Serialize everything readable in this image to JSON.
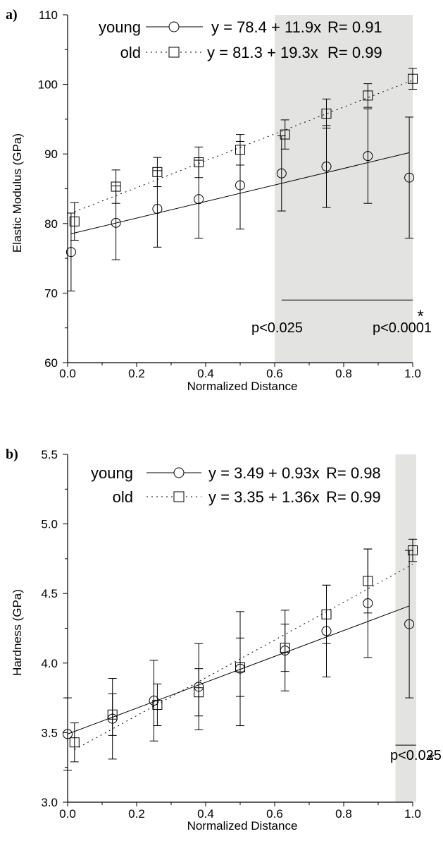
{
  "chart_data": [
    {
      "type": "scatter",
      "panel_label": "a)",
      "xlabel": "Normalized Distance",
      "ylabel": "Elastic Modulus (GPa)",
      "xlim": [
        0.0,
        1.0
      ],
      "ylim": [
        60,
        110
      ],
      "x_ticks": [
        "0.0",
        "0.2",
        "0.4",
        "0.6",
        "0.8",
        "1.0"
      ],
      "y_ticks": [
        "60",
        "70",
        "80",
        "90",
        "100",
        "110"
      ],
      "shaded_region": [
        0.6,
        1.0
      ],
      "series": [
        {
          "name": "young",
          "marker": "circle",
          "line": "solid",
          "equation": "y = 78.4 + 11.9x",
          "r_label": "R= 0.91",
          "fit": {
            "intercept": 78.4,
            "slope": 11.9
          },
          "x": [
            0.01,
            0.14,
            0.26,
            0.38,
            0.5,
            0.62,
            0.75,
            0.87,
            0.99
          ],
          "y": [
            75.9,
            80.1,
            82.1,
            83.5,
            85.5,
            87.2,
            88.2,
            89.7,
            86.6
          ],
          "err": [
            5.6,
            5.3,
            5.5,
            5.6,
            6.3,
            5.4,
            5.9,
            6.8,
            8.7
          ]
        },
        {
          "name": "old",
          "marker": "square",
          "line": "dotted",
          "equation": "y = 81.3 + 19.3x",
          "r_label": "R= 0.99",
          "fit": {
            "intercept": 81.3,
            "slope": 19.3
          },
          "x": [
            0.02,
            0.14,
            0.26,
            0.38,
            0.5,
            0.63,
            0.75,
            0.87,
            1.0
          ],
          "y": [
            80.3,
            85.3,
            87.4,
            88.8,
            90.6,
            92.8,
            95.8,
            98.4,
            100.8
          ],
          "err": [
            2.7,
            2.4,
            2.1,
            2.2,
            2.2,
            2.1,
            2.1,
            1.7,
            1.5
          ]
        }
      ],
      "annotations": {
        "sig_bar_x": [
          0.62,
          1.0
        ],
        "sig_bar_y": 69,
        "star": "*",
        "p_left": "p<0.025",
        "p_right": "p<0.0001"
      }
    },
    {
      "type": "scatter",
      "panel_label": "b)",
      "xlabel": "Normalized Distance",
      "ylabel": "Hardness (GPa)",
      "xlim": [
        0.0,
        1.0
      ],
      "ylim": [
        3.0,
        5.5
      ],
      "x_ticks": [
        "0.0",
        "0.2",
        "0.4",
        "0.6",
        "0.8",
        "1.0"
      ],
      "y_ticks": [
        "3.0",
        "3.5",
        "4.0",
        "4.5",
        "5.0",
        "5.5"
      ],
      "shaded_region": [
        0.95,
        1.01
      ],
      "series": [
        {
          "name": "young",
          "marker": "circle",
          "line": "solid",
          "equation": "y = 3.49 + 0.93x",
          "r_label": "R= 0.98",
          "fit": {
            "intercept": 3.49,
            "slope": 0.93
          },
          "x": [
            0.0,
            0.13,
            0.25,
            0.38,
            0.5,
            0.63,
            0.75,
            0.87,
            0.99
          ],
          "y": [
            3.49,
            3.6,
            3.73,
            3.83,
            3.96,
            4.09,
            4.23,
            4.43,
            4.28
          ],
          "err": [
            0.26,
            0.29,
            0.29,
            0.31,
            0.41,
            0.29,
            0.33,
            0.39,
            0.53
          ]
        },
        {
          "name": "old",
          "marker": "square",
          "line": "dotted",
          "equation": "y = 3.35 + 1.36x",
          "r_label": "R= 0.99",
          "fit": {
            "intercept": 3.35,
            "slope": 1.36
          },
          "x": [
            0.02,
            0.13,
            0.26,
            0.38,
            0.5,
            0.63,
            0.75,
            0.87,
            1.0
          ],
          "y": [
            3.43,
            3.63,
            3.7,
            3.79,
            3.97,
            4.11,
            4.35,
            4.59,
            4.81
          ],
          "err": [
            0.14,
            0.15,
            0.15,
            0.17,
            0.21,
            0.17,
            0.21,
            0.23,
            0.08
          ]
        }
      ],
      "annotations": {
        "sig_bar_x": [
          0.95,
          1.01
        ],
        "sig_bar_y": 3.41,
        "star": "*",
        "p_left": "p<0.025"
      }
    }
  ]
}
